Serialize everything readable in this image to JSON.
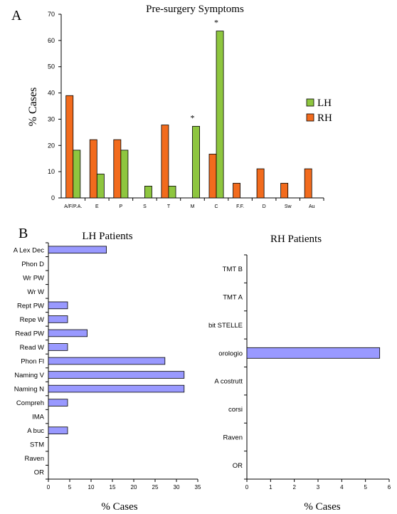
{
  "panel_a": {
    "letter": "A",
    "colors": {
      "LH": "#8ec63f",
      "RH": "#f26b1d"
    }
  },
  "panel_b": {
    "letter": "B",
    "bar_color": "#9999ff"
  },
  "chart_data": [
    {
      "type": "bar",
      "title": "Pre-surgery Symptoms",
      "ylabel": "% Cases",
      "xlabel": "",
      "ylim": [
        0,
        70
      ],
      "yticks": [
        0,
        10,
        20,
        30,
        40,
        50,
        60,
        70
      ],
      "categories": [
        "A/F/P.A.",
        "E",
        "P",
        "S",
        "T",
        "M",
        "C",
        "F.F.",
        "D",
        "Sw",
        "Au"
      ],
      "series": [
        {
          "name": "RH",
          "values": [
            39,
            22.2,
            22.2,
            0,
            27.8,
            0,
            16.7,
            5.6,
            11.1,
            5.6,
            11.1
          ]
        },
        {
          "name": "LH",
          "values": [
            18.2,
            9.1,
            18.2,
            4.5,
            4.5,
            27.3,
            63.6,
            0,
            0,
            0,
            0
          ]
        }
      ],
      "legend": [
        "LH",
        "RH"
      ],
      "legend_position": "right",
      "annotations": [
        {
          "text": "*",
          "category": "M"
        },
        {
          "text": "*",
          "category": "C"
        }
      ]
    },
    {
      "type": "bar",
      "orientation": "horizontal",
      "title": "LH Patients",
      "xlabel": "% Cases",
      "ylabel": "",
      "xlim": [
        0,
        35
      ],
      "xticks": [
        0,
        5,
        10,
        15,
        20,
        25,
        30,
        35
      ],
      "categories": [
        "A Lex Dec",
        "Phon D",
        "Wr PW",
        "Wr W",
        "Rept PW",
        "Repe W",
        "Read PW",
        "Read W",
        "Phon Fl",
        "Naming V",
        "Naming N",
        "Compreh",
        "IMA",
        "A buc",
        "STM",
        "Raven",
        "OR"
      ],
      "values": [
        13.6,
        0,
        0,
        0,
        4.5,
        4.5,
        9.1,
        4.5,
        27.3,
        31.8,
        31.8,
        4.5,
        0,
        4.5,
        0,
        0,
        0
      ]
    },
    {
      "type": "bar",
      "orientation": "horizontal",
      "title": "RH Patients",
      "xlabel": "% Cases",
      "ylabel": "",
      "xlim": [
        0,
        6
      ],
      "xticks": [
        0,
        1,
        2,
        3,
        4,
        5,
        6
      ],
      "categories": [
        "TMT B",
        "TMT A",
        "bit STELLE",
        "orologio",
        "A costrutt",
        "corsi",
        "Raven",
        "OR"
      ],
      "values": [
        0,
        0,
        0,
        5.6,
        0,
        0,
        0,
        0
      ]
    }
  ]
}
